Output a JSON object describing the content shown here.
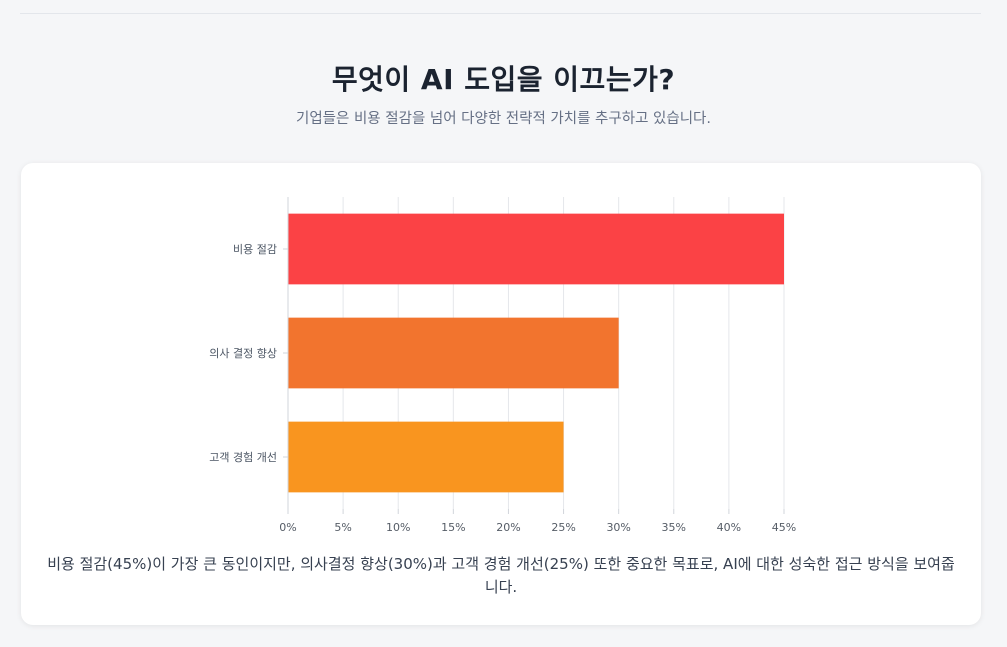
{
  "header": {
    "title": "무엇이 AI 도입을 이끄는가?",
    "subtitle": "기업들은 비용 절감을 넘어 다양한 전략적 가치를 추구하고 있습니다."
  },
  "chart_data": {
    "type": "bar",
    "orientation": "horizontal",
    "categories": [
      "비용 절감",
      "의사 결정 향상",
      "고객 경험 개선"
    ],
    "values": [
      45,
      30,
      25
    ],
    "colors": [
      "#fb4245",
      "#f2742e",
      "#f9951f"
    ],
    "xlim": [
      0,
      45
    ],
    "x_ticks": [
      0,
      5,
      10,
      15,
      20,
      25,
      30,
      35,
      40,
      45
    ],
    "x_tick_labels": [
      "0%",
      "5%",
      "10%",
      "15%",
      "20%",
      "25%",
      "30%",
      "35%",
      "40%",
      "45%"
    ],
    "grid": true,
    "legend": "none"
  },
  "caption": "비용 절감(45%)이 가장 큰 동인이지만, 의사결정 향상(30%)과 고객 경험 개선(25%) 또한 중요한 목표로, AI에 대한 성숙한 접근 방식을 보여줍니다."
}
